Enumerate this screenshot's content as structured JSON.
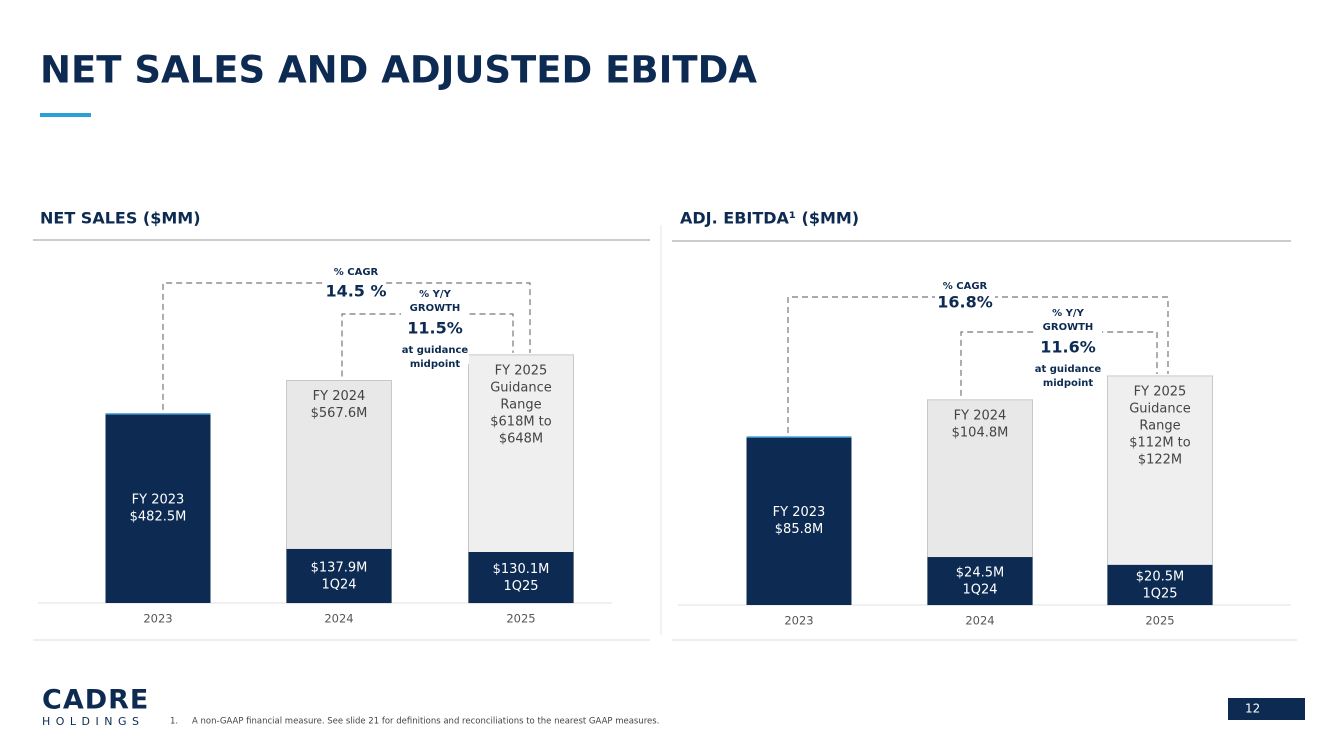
{
  "title": "NET SALES AND ADJUSTED EBITDA",
  "logo": {
    "name": "CADRE",
    "sub": "HOLDINGS"
  },
  "footnote": {
    "number": "1.",
    "text": "A non-GAAP financial measure. See slide 21 for definitions and reconciliations to the nearest GAAP measures."
  },
  "page_number": "12",
  "chart_data": [
    {
      "type": "bar",
      "title": "NET SALES ($MM)",
      "categories": [
        "2023",
        "2024",
        "2025"
      ],
      "ylim": [
        0,
        700
      ],
      "series": [
        {
          "values": [
            482.5,
            567.6,
            633
          ],
          "colors": [
            "#0d2b52",
            "#e8e8e8",
            "#efefef"
          ]
        },
        {
          "values": [
            null,
            137.9,
            130.1
          ],
          "color": "#0d2b52",
          "value_labels": [
            null,
            "$137.9M",
            "$130.1M"
          ],
          "quarters": [
            null,
            "1Q24",
            "1Q25"
          ]
        }
      ],
      "bar_texts": [
        [
          "FY 2023",
          "$482.5M"
        ],
        [
          "FY 2024",
          "$567.6M"
        ],
        [
          "FY 2025",
          "Guidance",
          "Range",
          "$618M to",
          "$648M"
        ]
      ],
      "cagr": {
        "label": "% CAGR",
        "value": "14.5 %"
      },
      "yoy": {
        "label": [
          "% Y/Y",
          "GROWTH"
        ],
        "value": "11.5%",
        "note": [
          "at guidance",
          "midpoint"
        ]
      }
    },
    {
      "type": "bar",
      "title": "ADJ. EBITDA¹ ($MM)",
      "categories": [
        "2023",
        "2024",
        "2025"
      ],
      "ylim": [
        0,
        130
      ],
      "series": [
        {
          "values": [
            85.8,
            104.8,
            117
          ],
          "colors": [
            "#0d2b52",
            "#e8e8e8",
            "#efefef"
          ]
        },
        {
          "values": [
            null,
            24.5,
            20.5
          ],
          "color": "#0d2b52",
          "value_labels": [
            null,
            "$24.5M",
            "$20.5M"
          ],
          "quarters": [
            null,
            "1Q24",
            "1Q25"
          ]
        }
      ],
      "bar_texts": [
        [
          "FY 2023",
          "$85.8M"
        ],
        [
          "FY 2024",
          "$104.8M"
        ],
        [
          "FY 2025",
          "Guidance",
          "Range",
          "$112M to",
          "$122M"
        ]
      ],
      "cagr": {
        "label": "% CAGR",
        "value": "16.8%"
      },
      "yoy": {
        "label": [
          "% Y/Y",
          "GROWTH"
        ],
        "value": "11.6%",
        "note": [
          "at guidance",
          "midpoint"
        ]
      }
    }
  ]
}
